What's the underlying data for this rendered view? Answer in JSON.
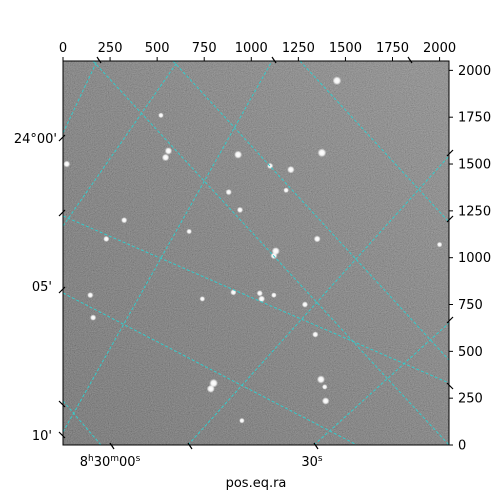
{
  "chart_data": {
    "type": "image",
    "xlabel": "pos.eq.ra",
    "ylabel": "",
    "pixel_axes": {
      "x": {
        "range": [
          0,
          2050
        ],
        "ticks": [
          0,
          250,
          500,
          750,
          1000,
          1250,
          1500,
          1750,
          2000
        ],
        "tick_labels": [
          "0",
          "250",
          "500",
          "750",
          "1000",
          "1250",
          "1500",
          "1750",
          "2000"
        ]
      },
      "y": {
        "range": [
          0,
          2050
        ],
        "ticks": [
          0,
          250,
          500,
          750,
          1000,
          1250,
          1500,
          1750,
          2000
        ],
        "tick_labels": [
          "0",
          "250",
          "500",
          "750",
          "1000",
          "1250",
          "1500",
          "1750",
          "2000"
        ]
      }
    },
    "ra_tick_labels": {
      "hour": "8",
      "minute": "30",
      "second_first": "00",
      "second_second": "30"
    },
    "dec_tick_labels": [
      "24°00'",
      "05'",
      "10'"
    ],
    "grid": true,
    "grid_color": "#33cccc",
    "image_colormap": "gray",
    "stars": [
      {
        "x": 1455,
        "y": 1945,
        "b": 1.0
      },
      {
        "x": 1375,
        "y": 1560,
        "b": 1.0
      },
      {
        "x": 930,
        "y": 1550,
        "b": 0.9
      },
      {
        "x": 560,
        "y": 1570,
        "b": 0.8
      },
      {
        "x": 545,
        "y": 1535,
        "b": 0.8
      },
      {
        "x": 20,
        "y": 1500,
        "b": 0.7
      },
      {
        "x": 880,
        "y": 1350,
        "b": 0.6
      },
      {
        "x": 940,
        "y": 1255,
        "b": 0.6
      },
      {
        "x": 1210,
        "y": 1470,
        "b": 0.8
      },
      {
        "x": 1350,
        "y": 1100,
        "b": 0.7
      },
      {
        "x": 1130,
        "y": 1035,
        "b": 0.9
      },
      {
        "x": 1120,
        "y": 1010,
        "b": 0.7
      },
      {
        "x": 1045,
        "y": 810,
        "b": 0.6
      },
      {
        "x": 1055,
        "y": 780,
        "b": 0.7
      },
      {
        "x": 905,
        "y": 815,
        "b": 0.6
      },
      {
        "x": 1285,
        "y": 750,
        "b": 0.6
      },
      {
        "x": 1370,
        "y": 350,
        "b": 0.9
      },
      {
        "x": 1395,
        "y": 235,
        "b": 0.8
      },
      {
        "x": 1340,
        "y": 590,
        "b": 0.6
      },
      {
        "x": 1390,
        "y": 310,
        "b": 0.5
      },
      {
        "x": 800,
        "y": 330,
        "b": 1.0
      },
      {
        "x": 785,
        "y": 300,
        "b": 0.9
      },
      {
        "x": 160,
        "y": 680,
        "b": 0.6
      },
      {
        "x": 230,
        "y": 1100,
        "b": 0.6
      },
      {
        "x": 325,
        "y": 1200,
        "b": 0.6
      },
      {
        "x": 145,
        "y": 800,
        "b": 0.6
      },
      {
        "x": 1100,
        "y": 1490,
        "b": 0.6
      },
      {
        "x": 670,
        "y": 1140,
        "b": 0.5
      },
      {
        "x": 950,
        "y": 130,
        "b": 0.5
      },
      {
        "x": 1185,
        "y": 1360,
        "b": 0.5
      },
      {
        "x": 740,
        "y": 780,
        "b": 0.5
      },
      {
        "x": 1120,
        "y": 800,
        "b": 0.5
      },
      {
        "x": 520,
        "y": 1760,
        "b": 0.5
      },
      {
        "x": 2000,
        "y": 1070,
        "b": 0.5
      }
    ]
  }
}
